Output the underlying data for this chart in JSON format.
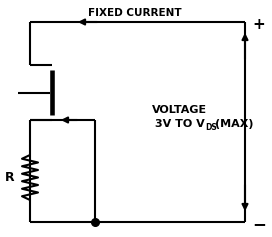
{
  "title": "FIXED CURRENT",
  "voltage_label_line1": "VOLTAGE",
  "voltage_label_line2": "3V TO V",
  "voltage_label_sub": "DS",
  "voltage_label_end": "(MAX)",
  "resistor_label": "R",
  "plus_label": "+",
  "minus_label": "−",
  "bg_color": "#ffffff",
  "line_color": "#000000",
  "line_width": 1.5,
  "fig_width": 2.72,
  "fig_height": 2.37,
  "dpi": 100
}
